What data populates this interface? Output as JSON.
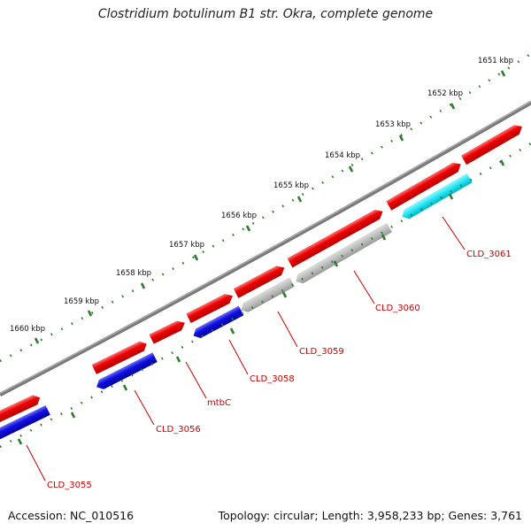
{
  "title": "Clostridium botulinum B1 str. Okra, complete genome",
  "footer": {
    "accession": "Accession: NC_010516",
    "topology": "Topology: circular; Length: 3,958,233 bp; Genes: 3,761"
  },
  "kbp_labels": [
    "1651 kbp",
    "1652 kbp",
    "1653 kbp",
    "1654 kbp",
    "1655 kbp",
    "1656 kbp",
    "1657 kbp",
    "1658 kbp",
    "1659 kbp",
    "1660 kbp"
  ],
  "gene_labels": [
    "CLD_3061",
    "CLD_3060",
    "CLD_3059",
    "CLD_3058",
    "mtbC",
    "CLD_3056",
    "CLD_3055"
  ],
  "colors": {
    "backbone": "#888888",
    "forward_cds": "#ee0000",
    "reverse_cds_blue": "#1414dd",
    "reverse_cds_gray": "#b8b8b8",
    "reverse_cds_cyan": "#22e0f0",
    "tick": "#2e7d2e",
    "label": "#cc0000"
  }
}
